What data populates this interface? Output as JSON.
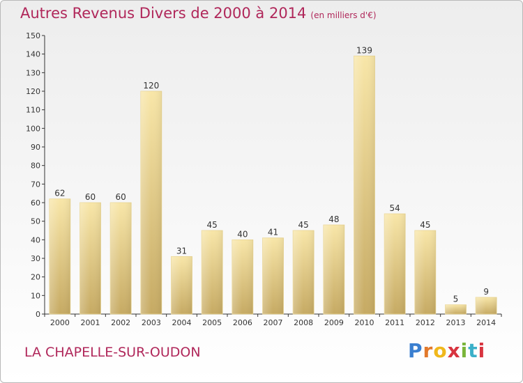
{
  "header": {
    "title": "Autres Revenus Divers de 2000 à 2014",
    "subtitle": "(en milliers d'€)"
  },
  "footer": {
    "location": "LA CHAPELLE-SUR-OUDON",
    "logo_text": "Proxiti"
  },
  "colors": {
    "title": "#b0275a",
    "bar_light": "#f6e3a6",
    "bar_dark": "#c9ae67",
    "axis": "#333333"
  },
  "chart_data": {
    "type": "bar",
    "title": "Autres Revenus Divers de 2000 à 2014",
    "subtitle": "(en milliers d'€)",
    "xlabel": "",
    "ylabel": "",
    "categories": [
      "2000",
      "2001",
      "2002",
      "2003",
      "2004",
      "2005",
      "2006",
      "2007",
      "2008",
      "2009",
      "2010",
      "2011",
      "2012",
      "2013",
      "2014"
    ],
    "values": [
      62,
      60,
      60,
      120,
      31,
      45,
      40,
      41,
      45,
      48,
      139,
      54,
      45,
      5,
      9
    ],
    "data_labels": [
      "62",
      "60",
      "60",
      "120",
      "31",
      "45",
      "40",
      "41",
      "45",
      "48",
      "139",
      "54",
      "45",
      "5",
      "9"
    ],
    "ylim": [
      0,
      150
    ],
    "yticks": [
      0,
      10,
      20,
      30,
      40,
      50,
      60,
      70,
      80,
      90,
      100,
      110,
      120,
      130,
      140,
      150
    ],
    "grid": false,
    "legend": "none"
  }
}
